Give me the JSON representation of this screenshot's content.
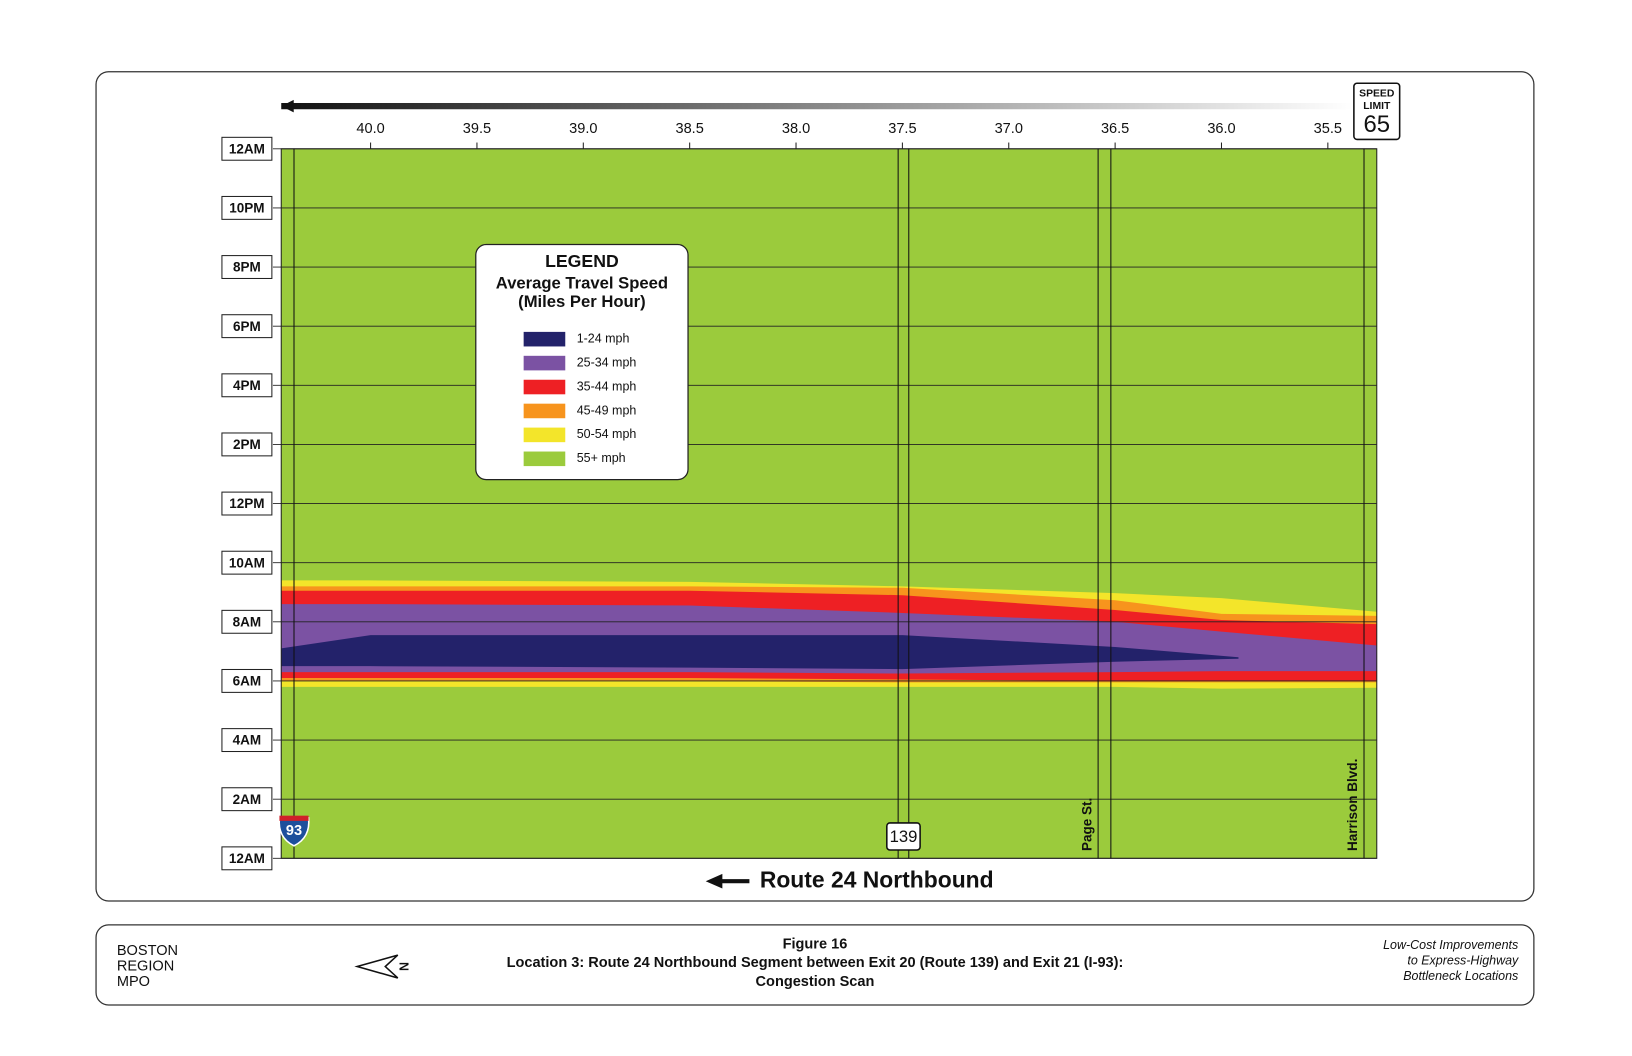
{
  "chart_data": {
    "type": "congestion-scan",
    "title": "Route 24 Northbound",
    "legend_title": "LEGEND",
    "legend_subtitle": [
      "Average Travel Speed",
      "(Miles Per Hour)"
    ],
    "sign": {
      "top": "SPEED",
      "middle": "LIMIT",
      "value": "65"
    },
    "xlim": [
      40.42,
      35.27
    ],
    "xticks": [
      {
        "value": 40,
        "label": "40.0"
      },
      39.5,
      {
        "value": 39,
        "label": "39.0"
      },
      38.5,
      {
        "value": 38,
        "label": "38.0"
      },
      37.5,
      {
        "value": 37,
        "label": "37.0"
      },
      36.5,
      {
        "value": 36,
        "label": "36.0"
      },
      35.5
    ],
    "ylim": [
      0,
      24
    ],
    "yticks": [
      {
        "value": 0,
        "label": "12AM"
      },
      {
        "value": 2,
        "label": "2AM"
      },
      {
        "value": 4,
        "label": "4AM"
      },
      {
        "value": 6,
        "label": "6AM"
      },
      {
        "value": 8,
        "label": "8AM"
      },
      {
        "value": 10,
        "label": "10AM"
      },
      {
        "value": 12,
        "label": "12PM"
      },
      {
        "value": 14,
        "label": "2PM"
      },
      {
        "value": 16,
        "label": "4PM"
      },
      {
        "value": 18,
        "label": "6PM"
      },
      {
        "value": 20,
        "label": "8PM"
      },
      {
        "value": 22,
        "label": "10PM"
      },
      {
        "value": 24,
        "label": "12AM"
      }
    ],
    "grid": true,
    "landmarks": [
      {
        "label": "93",
        "x": [
          40.36
        ]
      },
      {
        "label": "139",
        "x": [
          37.52,
          37.47
        ]
      },
      {
        "label": "Page St.",
        "x": [
          36.58,
          36.52
        ]
      },
      {
        "label": "Harrison Blvd.",
        "x": [
          35.33
        ]
      }
    ],
    "series": [
      {
        "name": "1-24 mph",
        "color": "#23226a",
        "x": [
          40.42,
          40.0,
          38.5,
          37.5,
          36.5,
          35.92
        ],
        "from": [
          6.5,
          6.5,
          6.45,
          6.4,
          6.65,
          6.75
        ],
        "to": [
          7.1,
          7.55,
          7.55,
          7.55,
          7.15,
          6.8
        ]
      },
      {
        "name": "25-34 mph",
        "color": "#7b52a3",
        "x": [
          40.42,
          40.0,
          38.5,
          37.5,
          36.5,
          36.0,
          35.27
        ],
        "from": [
          6.3,
          6.3,
          6.3,
          6.25,
          6.3,
          6.33,
          6.33
        ],
        "to": [
          8.6,
          8.6,
          8.55,
          8.3,
          8.0,
          7.67,
          7.2
        ]
      },
      {
        "name": "35-44 mph",
        "color": "#ee2024",
        "x": [
          40.42,
          40.0,
          38.5,
          37.5,
          36.5,
          36.0,
          35.27
        ],
        "from": [
          6.1,
          6.1,
          6.1,
          6.05,
          6.0,
          6.0,
          6.0
        ],
        "to": [
          9.05,
          9.05,
          9.05,
          8.9,
          8.4,
          8.06,
          7.92
        ]
      },
      {
        "name": "45-49 mph",
        "color": "#f7941d",
        "x": [
          40.42,
          40.0,
          38.5,
          37.5,
          36.5,
          36.0,
          35.27
        ],
        "from": [
          6.0,
          6.0,
          6.0,
          5.95,
          5.95,
          5.95,
          5.95
        ],
        "to": [
          9.2,
          9.2,
          9.2,
          9.15,
          8.73,
          8.27,
          8.2
        ]
      },
      {
        "name": "50-54 mph",
        "color": "#f3e52a",
        "x": [
          40.42,
          40.0,
          38.5,
          37.5,
          36.5,
          36.0,
          35.27
        ],
        "from": [
          5.8,
          5.8,
          5.8,
          5.8,
          5.8,
          5.74,
          5.77
        ],
        "to": [
          9.4,
          9.4,
          9.35,
          9.2,
          8.97,
          8.8,
          8.34
        ]
      },
      {
        "name": "55+ mph",
        "color": "#9bcb3c"
      }
    ]
  },
  "footer": {
    "org": [
      "BOSTON",
      "REGION",
      "MPO"
    ],
    "north": "N",
    "figure": "Figure 16",
    "caption": "Location 3: Route 24 Northbound Segment between Exit 20 (Route 139) and Exit 21 (I-93):",
    "subcaption": "Congestion Scan",
    "report": [
      "Low-Cost Improvements",
      "to Express-Highway",
      "Bottleneck Locations"
    ]
  }
}
